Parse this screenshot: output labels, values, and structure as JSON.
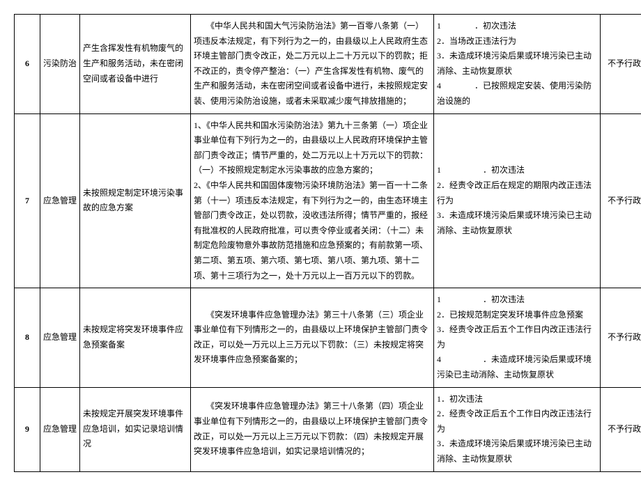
{
  "rows": [
    {
      "num": "6",
      "category": "污染防治",
      "description": "产生含挥发性有机物废气的生产和服务活动，未在密闭空间或者设备中进行",
      "law": "　　《中华人民共和国大气污染防治法》第一百零八条第（一）项违反本法规定，有下列行为之一的，由县级以上人民政府生态环境主管部门责令改正，处二万元以上二十万元以下的罚款；拒不改正的，责令停产整治：（一）产生含挥发性有机物、废气的生产和服务活动，未在密闭空间或者设备中进行，未按照规定安装、使用污染防治设施，或者未采取减少废气排放措施的；",
      "conditions": [
        "1　　　　．初次违法",
        "2．当场改正违法行为",
        "3．未造成环境污染后果或环境污染已主动消除、主动恢复原状",
        "4　　　　．已按照规定安装、使用污染防治设施的"
      ],
      "result": "不予行政处罚"
    },
    {
      "num": "7",
      "category": "应急管理",
      "description": "未按照规定制定环境污染事故的应急方案",
      "law": "1、《中华人民共和国水污染防治法》第九十三条第（一）项企业事业单位有下列行为之一的，由县级以上人民政府环境保护主管部门责令改正；情节严重的，处二万元以上十万元以下的罚款：（一）不按照规定制定水污染事故的应急方案的；\n2、《中华人民共和国固体废物污染环境防治法》第一百一十二条第（十一）项违反本法规定，有下列行为之一的，由生态环境主管部门责令改正，处以罚款，没收违法所得；情节严重的，报经有批准权的人民政府批准，可以责令停业或者关闭：（十二）未制定危险废物意外事故防范措施和应急预案的；有前款第一项、第二项、第五项、第六项、第七项、第八项、第九项、第十二项、第十三项行为之一，处十万元以上一百万元以下的罚款。",
      "conditions": [
        "1　　　　　．初次违法",
        "2．经责令改正后在规定的期限内改正违法行为",
        "3．未造成环境污染后果或环境污染已主动消除、主动恢复原状"
      ],
      "result": "不予行政处罚"
    },
    {
      "num": "8",
      "category": "应急管理",
      "description": "未按规定将突发环境事件应急预案备案",
      "law": "　　《突发环境事件应急管理办法》第三十八条第（三）项企业事业单位有下列情形之一的，由县级以上环境保护主管部门责令改正，可以处一万元以上三万元以下罚款：（三）未按规定将突发环境事件应急预案备案的；",
      "conditions": [
        "1　　　　　．初次违法",
        "2．已按规范制定突发环境事件应急预案",
        "3．经责令改正后五个工作日内改正违法行为",
        "4　　　　　．未造成环境污染后果或环境污染已主动消除、主动恢复原状"
      ],
      "result": "不予行政处罚"
    },
    {
      "num": "9",
      "category": "应急管理",
      "description": "未按规定开展突发环境事件应急培训，如实记录培训情况",
      "law": "　　《突发环境事件应急管理办法》第三十八条第（四）项企业事业单位有下列情形之一的，由县级以上环境保护主管部门责令改正，可以处一万元以上三万元以下罚款：（四）未按规定开展突发环境事件应急培训，如实记录培训情况的；",
      "conditions": [
        "1．初次违法",
        "2．经责令改正后五个工作日内改正违法行为",
        "3．未造成环境污染后果或环境污染已主动消除、主动恢复原状"
      ],
      "result": "不予行政处罚"
    }
  ]
}
